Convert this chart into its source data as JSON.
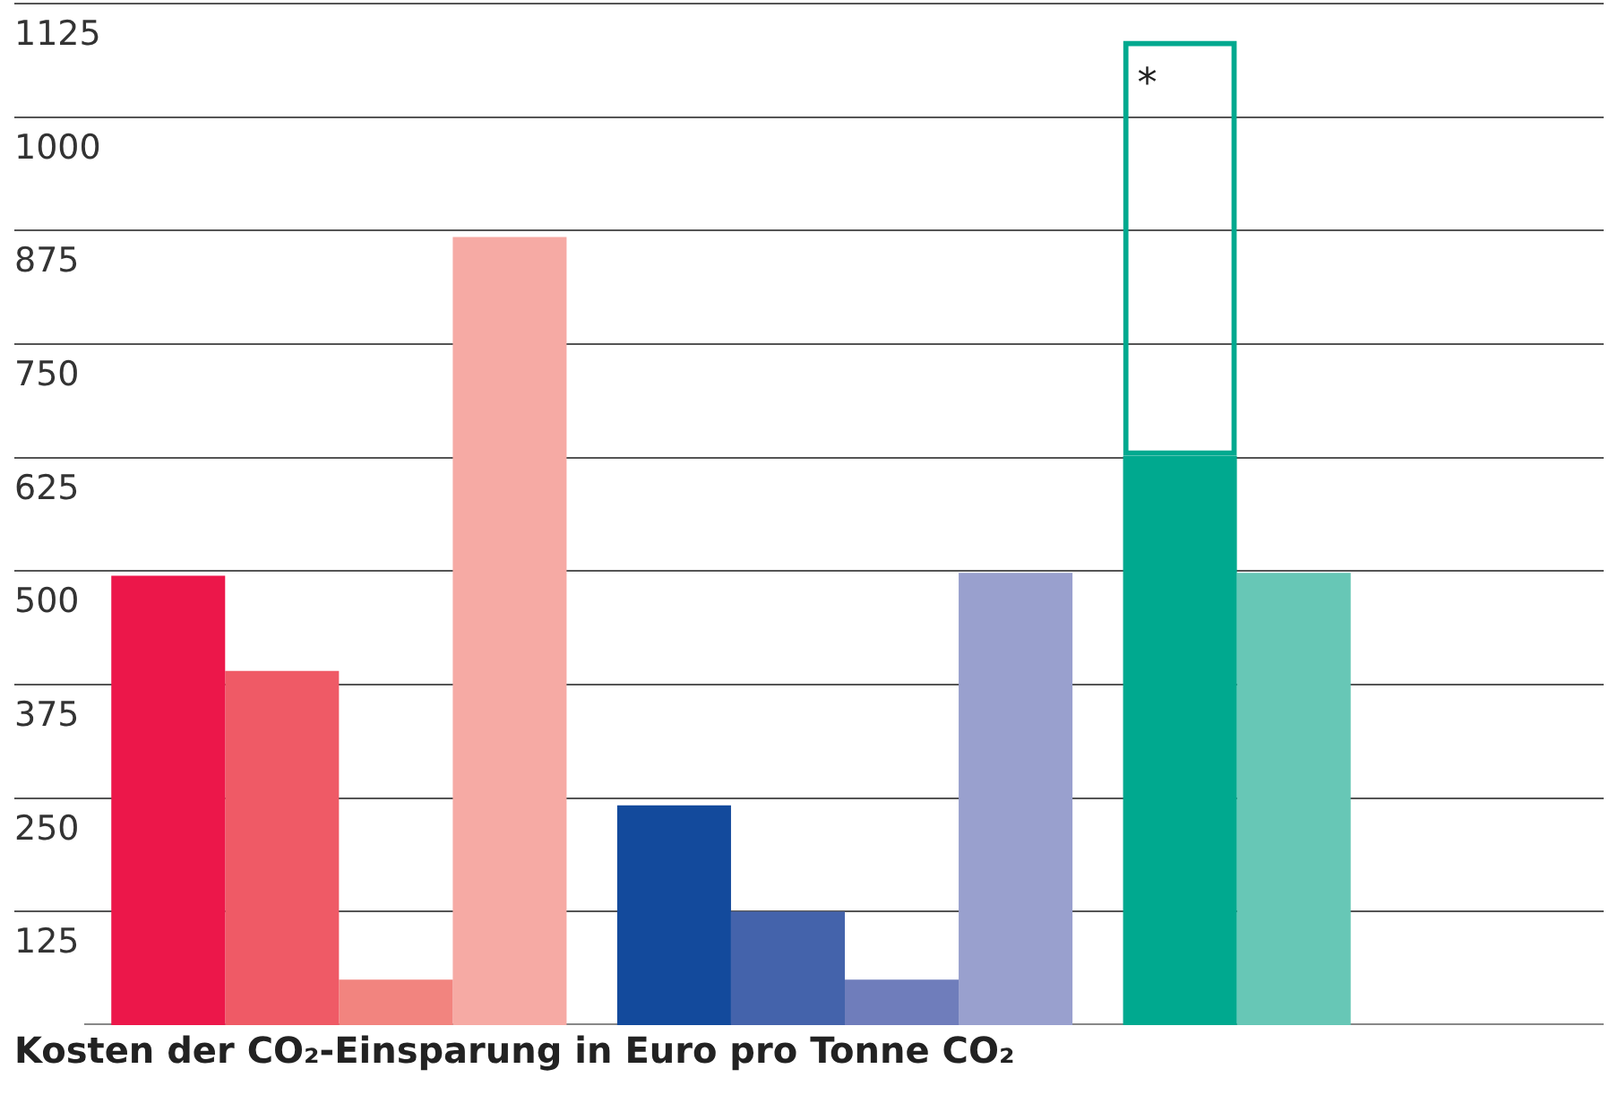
{
  "chart_data": {
    "type": "bar",
    "title": "Kosten der CO₂-Einsparung in Euro pro Tonne CO₂",
    "categories": [
      null,
      null,
      null
    ],
    "series": [
      {
        "colors": [
          "#ec174a",
          "#134a9c",
          "#00a98f"
        ],
        "values": [
          495,
          242,
          627
        ]
      },
      {
        "colors": [
          "#ef5a66",
          "#4463ab",
          "#67c7b6"
        ],
        "values": [
          390,
          125,
          498
        ]
      },
      {
        "colors": [
          "#f2847f",
          "#6f7dbb",
          null
        ],
        "values": [
          50,
          50,
          null
        ]
      },
      {
        "colors": [
          "#f6aaa4",
          "#99a0ce",
          null
        ],
        "values": [
          868,
          498,
          null
        ]
      },
      {
        "color": "#00a98f",
        "base": [
          null,
          null,
          627
        ],
        "values": [
          null,
          null,
          457
        ]
      }
    ],
    "ylim": [
      0,
      1125
    ],
    "yticks": [
      125,
      250,
      375,
      500,
      625,
      750,
      875,
      1000,
      1125
    ],
    "grid": "y",
    "annotations": [
      "*"
    ]
  }
}
